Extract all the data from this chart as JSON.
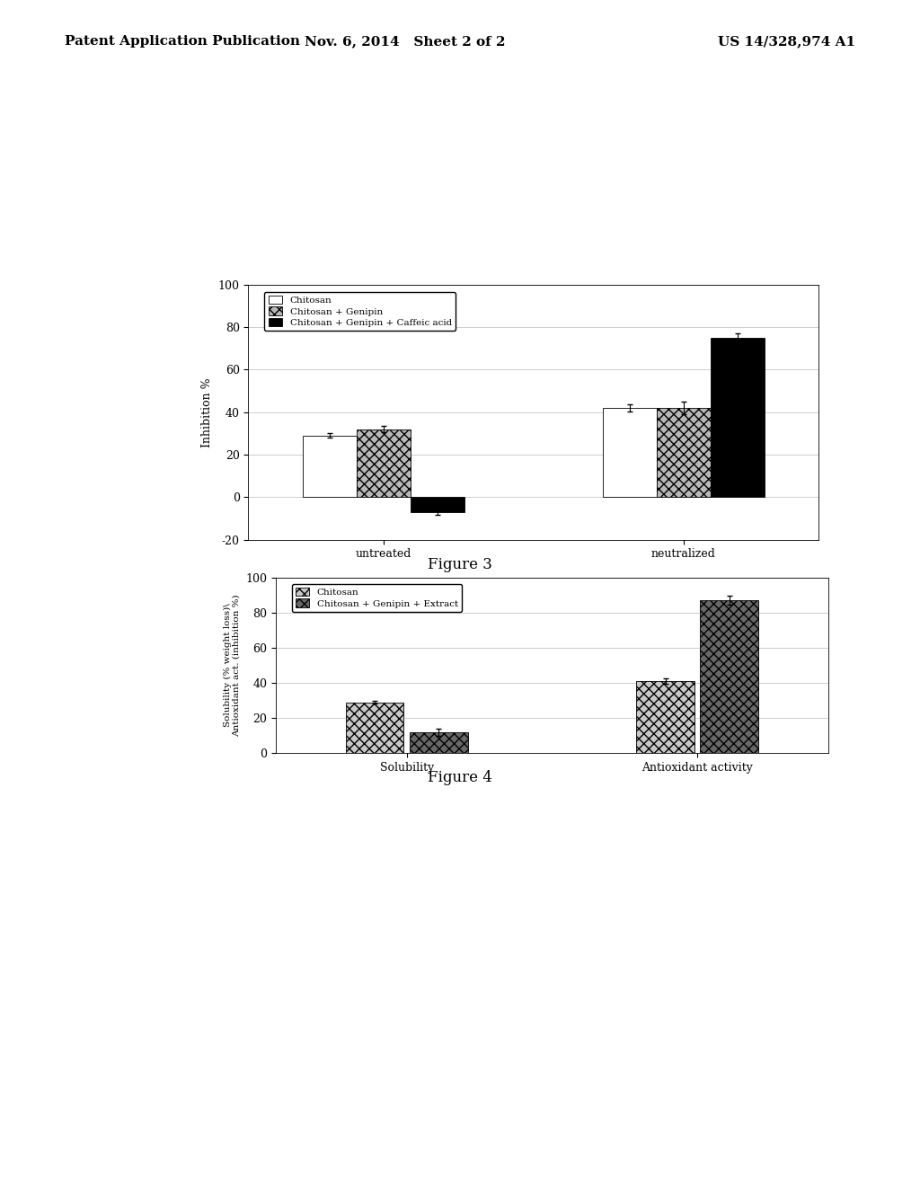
{
  "header_left": "Patent Application Publication",
  "header_mid": "Nov. 6, 2014   Sheet 2 of 2",
  "header_right": "US 14/328,974 A1",
  "fig3": {
    "groups": [
      "untreated",
      "neutralized"
    ],
    "series": [
      "Chitosan",
      "Chitosan + Genipin",
      "Chitosan + Genipin + Caffeic acid"
    ],
    "values": [
      [
        29,
        32,
        -7
      ],
      [
        42,
        42,
        75
      ]
    ],
    "errors": [
      [
        1.0,
        1.5,
        1.5
      ],
      [
        1.5,
        3.0,
        2.0
      ]
    ],
    "bar_colors_hex": [
      "#ffffff",
      "#b8b8b8",
      "#000000"
    ],
    "bar_hatches": [
      "",
      "xxx",
      ""
    ],
    "ylabel": "Inhibition %",
    "ylim": [
      -20,
      100
    ],
    "yticks": [
      -20,
      0,
      20,
      40,
      60,
      80,
      100
    ],
    "caption": "Figure 3"
  },
  "fig4": {
    "groups": [
      "Solubility",
      "Antioxidant activity"
    ],
    "series": [
      "Chitosan",
      "Chitosan + Genipin + Extract"
    ],
    "values": [
      [
        29,
        12
      ],
      [
        41,
        87
      ]
    ],
    "errors": [
      [
        1.0,
        2.0
      ],
      [
        1.5,
        2.5
      ]
    ],
    "bar_colors_hex": [
      "#c8c8c8",
      "#686868"
    ],
    "bar_hatches": [
      "xxx",
      "xxx"
    ],
    "ylabel_line1": "Solubility (% weight loss)\\",
    "ylabel_line2": "Antioxidant act. (inhibition %)",
    "ylim": [
      0,
      100
    ],
    "yticks": [
      0,
      20,
      40,
      60,
      80,
      100
    ],
    "caption": "Figure 4"
  },
  "background_color": "#ffffff",
  "text_color": "#000000",
  "font_family": "serif"
}
